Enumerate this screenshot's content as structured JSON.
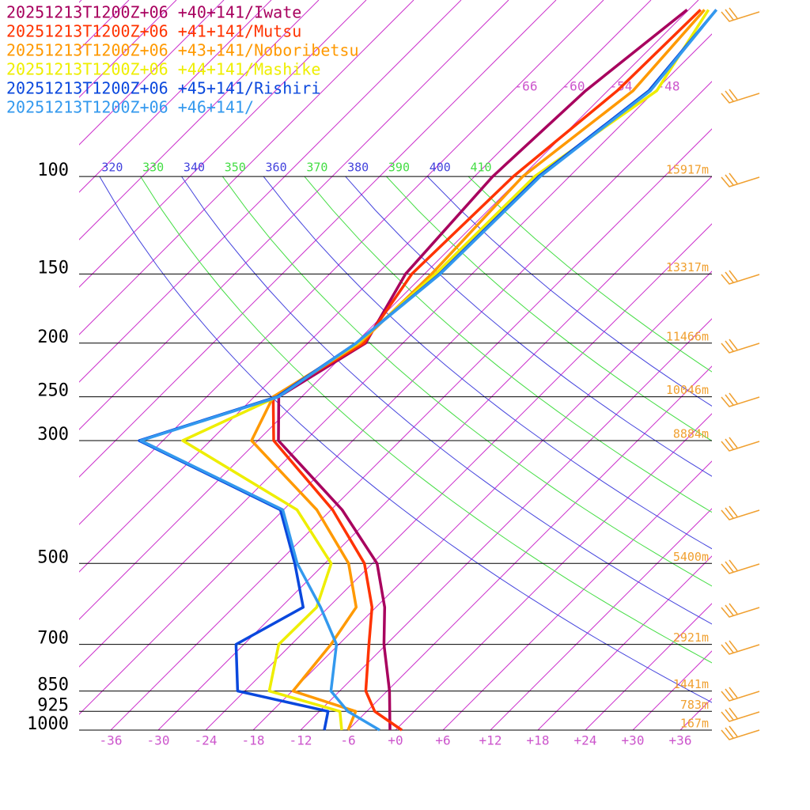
{
  "chart_data": {
    "type": "skewt",
    "levels": [
      1000,
      925,
      850,
      700,
      600,
      500,
      400,
      300,
      250,
      200,
      150,
      100,
      70,
      50
    ],
    "series": [
      {
        "name": "20251213T1200Z+06 +40+141/Iwate",
        "color": "#a8005e",
        "values": [
          -0.7,
          -3.1,
          -5.7,
          -12.3,
          -16.9,
          -23.4,
          -34.6,
          -51.4,
          -56.9,
          -52.7,
          -56.4,
          -57.7,
          -56.8,
          -54.2
        ]
      },
      {
        "name": "20251213T1200Z+06 +41+141/Mutsu",
        "color": "#ff3300",
        "values": [
          0.8,
          -5.0,
          -8.7,
          -14.2,
          -18.5,
          -25.0,
          -35.8,
          -52.0,
          -57.6,
          -52.9,
          -55.6,
          -55.1,
          -52.8,
          -52.5
        ]
      },
      {
        "name": "20251213T1200Z+06 +43+141/Noboribetsu",
        "color": "#ff9900",
        "values": [
          -6.0,
          -7.4,
          -17.9,
          -19.0,
          -20.5,
          -27.0,
          -37.8,
          -54.8,
          -57.6,
          -53.4,
          -53.1,
          -53.9,
          -50.8,
          -52.0
        ]
      },
      {
        "name": "20251213T1200Z+06 +44+141/Mashike",
        "color": "#eeee00",
        "values": [
          -6.8,
          -9.4,
          -20.9,
          -25.6,
          -25.5,
          -29.2,
          -40.3,
          -63.5,
          -57.1,
          -53.7,
          -52.6,
          -52.4,
          -47.8,
          -51.5
        ]
      },
      {
        "name": "20251213T1200Z+06 +45+141/Rishiri",
        "color": "#0a48dd",
        "values": [
          -9.0,
          -10.9,
          -24.9,
          -31.0,
          -27.2,
          -33.8,
          -42.4,
          -69.0,
          -57.1,
          -53.9,
          -52.1,
          -51.9,
          -48.8,
          -50.5
        ]
      },
      {
        "name": "20251213T1200Z+06 +46+141/",
        "color": "#3399ee",
        "values": [
          -2.0,
          -8.4,
          -13.1,
          -18.3,
          -25.0,
          -33.5,
          -42.1,
          -68.8,
          -56.9,
          -53.9,
          -52.0,
          -51.7,
          -48.6,
          -50.5
        ]
      }
    ],
    "ylim": [
      1000,
      48
    ],
    "yticks": [
      1000,
      925,
      850,
      700,
      500,
      300,
      250,
      200,
      150,
      100
    ],
    "height_labels": [
      "167m",
      "783m",
      "1441m",
      "2921m",
      "5400m",
      "8884m",
      "10046m",
      "11466m",
      "13317m",
      "15917m"
    ],
    "xlim": [
      -40,
      40
    ],
    "xticks": [
      -36,
      -30,
      -24,
      -18,
      -12,
      -6,
      {
        "value": 0,
        "label": "+0"
      },
      {
        "value": 6,
        "label": "+6"
      },
      {
        "value": 12,
        "label": "+12"
      },
      {
        "value": 18,
        "label": "+18"
      },
      {
        "value": 24,
        "label": "+24"
      },
      {
        "value": 30,
        "label": "+30"
      },
      {
        "value": 36,
        "label": "+36"
      }
    ],
    "isotherms": [
      -132,
      -126,
      -120,
      -114,
      -108,
      -102,
      -96,
      -90,
      -84,
      -78,
      -72,
      -66,
      -60,
      -54,
      -48,
      -42,
      -36,
      -30,
      -24,
      -18,
      -12,
      -6,
      0,
      6,
      12,
      18,
      24,
      30,
      36
    ],
    "isotherm_labels": [
      -66,
      -60,
      -54,
      -48
    ],
    "theta_labels": [
      320,
      330,
      340,
      350,
      360,
      370,
      380,
      390,
      400,
      410
    ],
    "theta_colors": [
      "#4444dd",
      "#44dd44"
    ],
    "isotherm_color": "#cc33cc"
  }
}
